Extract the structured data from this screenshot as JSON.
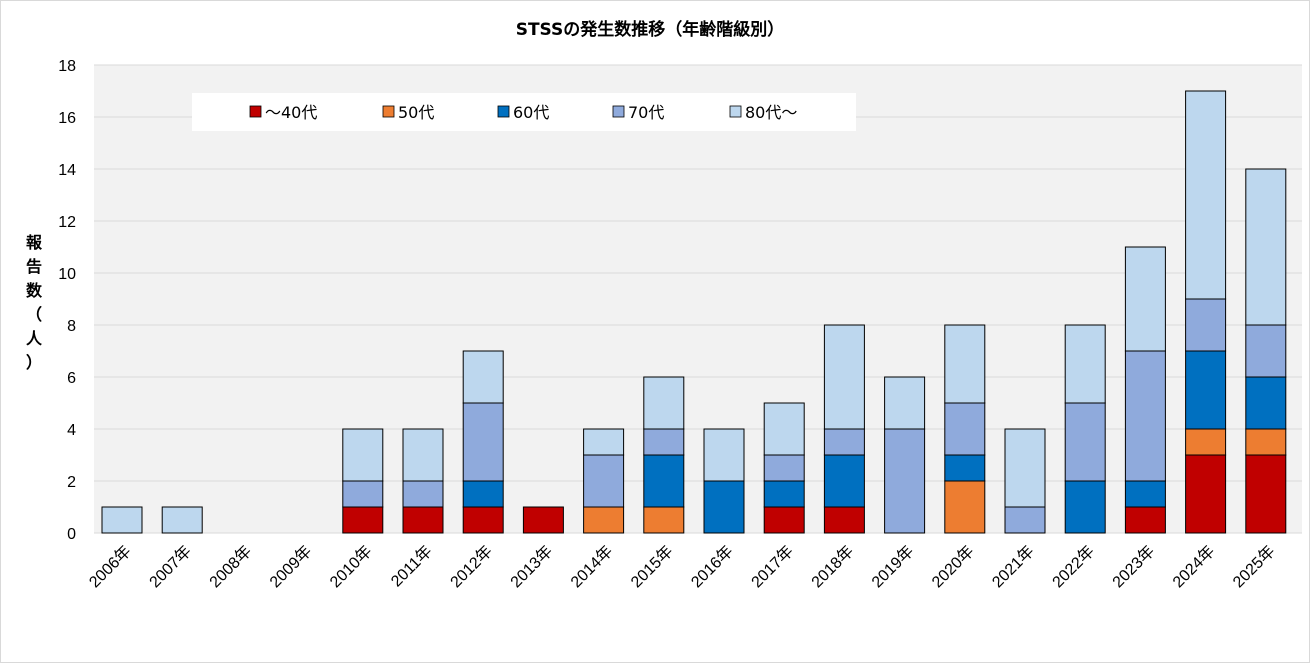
{
  "chart_data": {
    "type": "bar",
    "stacked": true,
    "title": "STSSの発生数推移（年齢階級別）",
    "ylabel_chars": [
      "報",
      "告",
      "数",
      "（",
      "人",
      "）"
    ],
    "categories": [
      "2006年",
      "2007年",
      "2008年",
      "2009年",
      "2010年",
      "2011年",
      "2012年",
      "2013年",
      "2014年",
      "2015年",
      "2016年",
      "2017年",
      "2018年",
      "2019年",
      "2020年",
      "2021年",
      "2022年",
      "2023年",
      "2024年",
      "2025年"
    ],
    "series": [
      {
        "name": "～40代",
        "color": "#c00000",
        "values": [
          0,
          0,
          0,
          0,
          1,
          1,
          1,
          1,
          0,
          0,
          0,
          1,
          1,
          0,
          0,
          0,
          0,
          1,
          3,
          3
        ]
      },
      {
        "name": "50代",
        "color": "#ed7d31",
        "values": [
          0,
          0,
          0,
          0,
          0,
          0,
          0,
          0,
          1,
          1,
          0,
          0,
          0,
          0,
          2,
          0,
          0,
          0,
          1,
          1
        ]
      },
      {
        "name": "60代",
        "color": "#0070c0",
        "values": [
          0,
          0,
          0,
          0,
          0,
          0,
          1,
          0,
          0,
          2,
          2,
          1,
          2,
          0,
          1,
          0,
          2,
          1,
          3,
          2
        ]
      },
      {
        "name": "70代",
        "color": "#8faadc",
        "values": [
          0,
          0,
          0,
          0,
          1,
          1,
          3,
          0,
          2,
          1,
          0,
          1,
          1,
          4,
          2,
          1,
          3,
          5,
          2,
          2
        ]
      },
      {
        "name": "80代～",
        "color": "#bdd7ee",
        "values": [
          1,
          1,
          0,
          0,
          2,
          2,
          2,
          0,
          1,
          2,
          2,
          2,
          4,
          2,
          3,
          3,
          3,
          4,
          8,
          6
        ]
      }
    ],
    "yticks": [
      "0",
      "2",
      "4",
      "6",
      "8",
      "10",
      "12",
      "14",
      "16",
      "18"
    ],
    "ylim": [
      0,
      18
    ],
    "grid": true,
    "legend_position": "top-left inside"
  }
}
